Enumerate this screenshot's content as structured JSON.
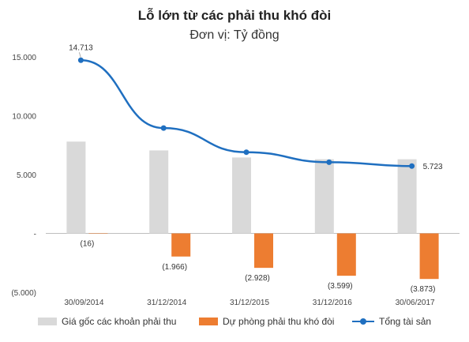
{
  "chart_data": {
    "type": "bar",
    "title": "Lỗ lớn từ các phải thu khó đòi",
    "subtitle": "Đơn vị: Tỷ đồng",
    "categories": [
      "30/09/2014",
      "31/12/2014",
      "31/12/2015",
      "31/12/2016",
      "30/06/2017"
    ],
    "series": [
      {
        "name": "Giá gốc các khoản phải thu",
        "type": "bar",
        "color": "#d9d9d9",
        "values": [
          7800,
          7050,
          6450,
          6300,
          6300
        ]
      },
      {
        "name": "Dự phòng phải thu khó đòi",
        "type": "bar",
        "color": "#ed7d31",
        "values": [
          -16,
          -1966,
          -2928,
          -3599,
          -3873
        ],
        "labels": [
          "(16)",
          "(1.966)",
          "(2.928)",
          "(3.599)",
          "(3.873)"
        ]
      },
      {
        "name": "Tổng tài sản",
        "type": "line",
        "color": "#1f6fc0",
        "values": [
          14713,
          8950,
          6900,
          6050,
          5723
        ],
        "labels": [
          "14.713",
          "",
          "",
          "",
          "5.723"
        ]
      }
    ],
    "yticks": [
      {
        "value": 15000,
        "label": "15.000"
      },
      {
        "value": 10000,
        "label": "10.000"
      },
      {
        "value": 5000,
        "label": "5.000"
      },
      {
        "value": 0,
        "label": "-"
      },
      {
        "value": -5000,
        "label": "(5.000)"
      }
    ],
    "ylim": [
      -5000,
      15000
    ],
    "legend": "bottom",
    "grid": false
  }
}
